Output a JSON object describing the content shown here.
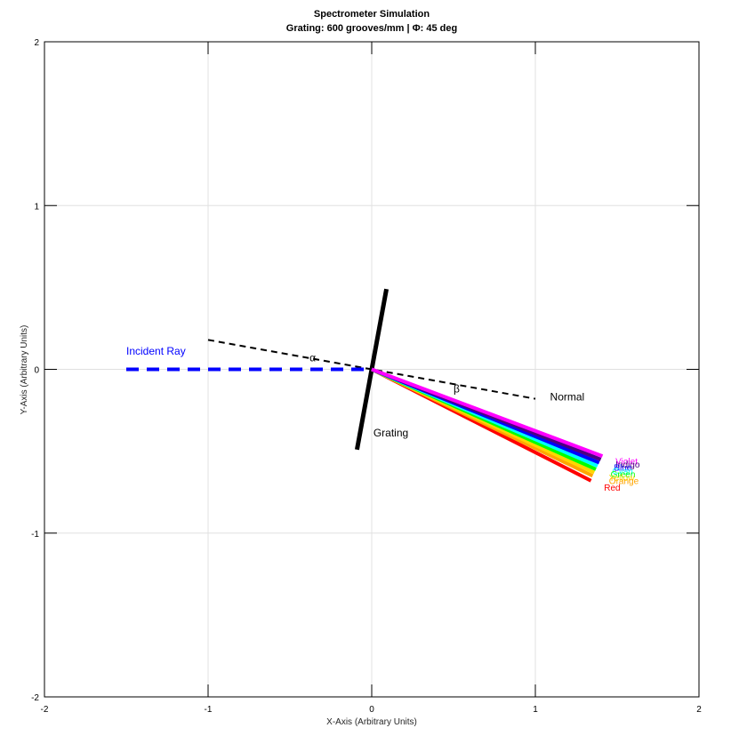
{
  "chart_data": {
    "type": "line",
    "title": "Spectrometer Simulation",
    "subtitle": "Grating: 600 grooves/mm | Φ: 45 deg",
    "xlabel": "X-Axis (Arbitrary Units)",
    "ylabel": "Y-Axis (Arbitrary Units)",
    "xlim": [
      -2,
      2
    ],
    "ylim": [
      -2,
      2
    ],
    "xticks": [
      -2,
      -1,
      0,
      1,
      2
    ],
    "yticks": [
      -2,
      -1,
      0,
      1,
      2
    ],
    "grid": true,
    "incident_ray": {
      "label": "Incident Ray",
      "color": "#0000ff",
      "x": [
        -1.5,
        0
      ],
      "y": [
        0,
        0
      ],
      "label_pos": [
        -1.5,
        0.09
      ]
    },
    "normal": {
      "label": "Normal",
      "color": "#000000",
      "x": [
        -1,
        1
      ],
      "y": [
        0.18,
        -0.18
      ],
      "label_pos": [
        1.09,
        -0.19
      ]
    },
    "grating": {
      "label": "Grating",
      "color": "#000000",
      "x": [
        -0.09,
        0.09
      ],
      "y": [
        -0.49,
        0.49
      ],
      "label_pos": [
        0.01,
        -0.41
      ]
    },
    "angle_labels": [
      {
        "text": "α",
        "pos": [
          -0.38,
          0.05
        ]
      },
      {
        "text": "β",
        "pos": [
          0.5,
          -0.14
        ]
      }
    ],
    "series": [
      {
        "name": "Violet",
        "color": "#ff00ff",
        "x": [
          0,
          1.41
        ],
        "y": [
          0,
          -0.53
        ],
        "label_pos": [
          1.49,
          -0.58
        ]
      },
      {
        "name": "Indigo",
        "color": "#4b0082",
        "x": [
          0,
          1.4
        ],
        "y": [
          0,
          -0.55
        ],
        "label_pos": [
          1.49,
          -0.6
        ]
      },
      {
        "name": "Blue",
        "color": "#0000ff",
        "x": [
          0,
          1.39
        ],
        "y": [
          0,
          -0.57
        ],
        "label_pos": [
          1.48,
          -0.62
        ]
      },
      {
        "name": "Cyan",
        "color": "#00ffff",
        "x": [
          0,
          1.38
        ],
        "y": [
          0,
          -0.59
        ],
        "label_pos": [
          1.47,
          -0.64
        ]
      },
      {
        "name": "Green",
        "color": "#00ff00",
        "x": [
          0,
          1.37
        ],
        "y": [
          0,
          -0.61
        ],
        "label_pos": [
          1.46,
          -0.66
        ]
      },
      {
        "name": "Yellow",
        "color": "#ffd700",
        "x": [
          0,
          1.36
        ],
        "y": [
          0,
          -0.63
        ],
        "label_pos": [
          1.45,
          -0.68
        ]
      },
      {
        "name": "Orange",
        "color": "#ffa500",
        "x": [
          0,
          1.35
        ],
        "y": [
          0,
          -0.65
        ],
        "label_pos": [
          1.45,
          -0.7
        ]
      },
      {
        "name": "Red",
        "color": "#ff0000",
        "x": [
          0,
          1.34
        ],
        "y": [
          0,
          -0.68
        ],
        "label_pos": [
          1.42,
          -0.74
        ]
      }
    ]
  }
}
